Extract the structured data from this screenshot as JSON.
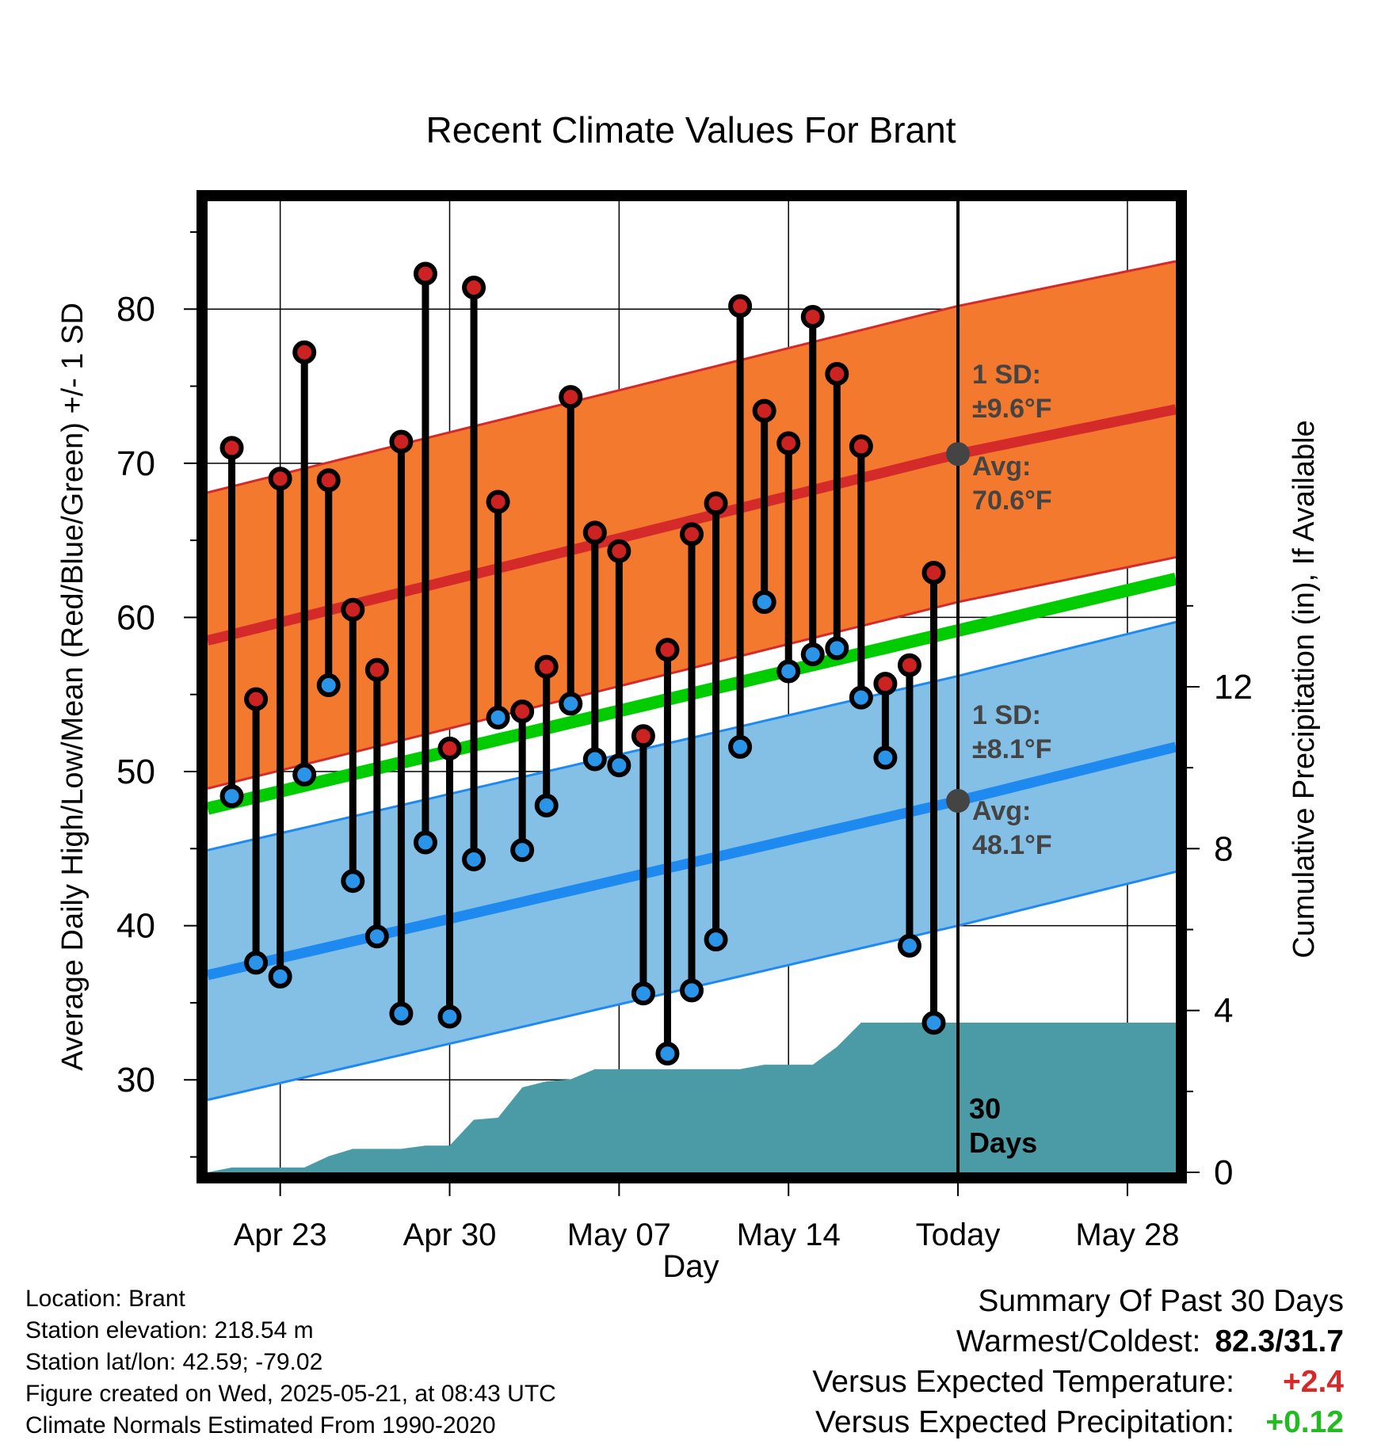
{
  "title": "Recent Climate Values For Brant",
  "chart_data": {
    "type": "line",
    "title": "Recent Climate Values For Brant",
    "xlabel": "Day",
    "ylabel_left": "Average Daily High/Low/Mean (Red/Blue/Green) +/- 1 SD",
    "ylabel_right": "Cumulative Precipitation (in), If Available",
    "x_ticks": [
      "Apr 23",
      "Apr 30",
      "May 07",
      "May 14",
      "Today",
      "May 28"
    ],
    "x_range": [
      "Apr 20",
      "May 30"
    ],
    "today": "May 21",
    "ylim_left": [
      24,
      87
    ],
    "yticks_left": [
      30,
      40,
      50,
      60,
      70,
      80
    ],
    "ylim_right": [
      0,
      24
    ],
    "yticks_right": [
      0,
      4,
      8,
      12
    ],
    "grid": true,
    "days": [
      "Apr 21",
      "Apr 22",
      "Apr 23",
      "Apr 24",
      "Apr 25",
      "Apr 26",
      "Apr 27",
      "Apr 28",
      "Apr 29",
      "Apr 30",
      "May 01",
      "May 02",
      "May 03",
      "May 04",
      "May 05",
      "May 06",
      "May 07",
      "May 08",
      "May 09",
      "May 10",
      "May 11",
      "May 12",
      "May 13",
      "May 14",
      "May 15",
      "May 16",
      "May 17",
      "May 18",
      "May 19",
      "May 20"
    ],
    "daily_high": [
      71.0,
      54.7,
      69.0,
      77.2,
      68.9,
      60.5,
      56.6,
      71.4,
      82.3,
      51.5,
      81.4,
      67.5,
      53.9,
      56.8,
      74.3,
      65.5,
      64.3,
      52.3,
      57.9,
      65.4,
      67.4,
      80.2,
      73.4,
      71.3,
      79.5,
      75.8,
      71.1,
      55.7,
      56.9,
      62.9
    ],
    "daily_low": [
      48.4,
      37.6,
      36.7,
      49.8,
      55.6,
      42.9,
      39.3,
      34.3,
      45.4,
      34.1,
      44.3,
      53.5,
      44.9,
      47.8,
      54.4,
      50.8,
      50.4,
      35.6,
      31.7,
      35.8,
      39.1,
      51.6,
      61.0,
      56.5,
      57.6,
      58.0,
      54.8,
      50.9,
      38.7,
      33.7
    ],
    "normal_high_avg": {
      "start": 58.5,
      "today": 70.6,
      "end": 73.5
    },
    "normal_high_sd": 9.6,
    "normal_low_avg": {
      "start": 36.8,
      "today": 48.1,
      "end": 51.6
    },
    "normal_low_sd": 8.1,
    "normal_mean": {
      "start": 47.6,
      "end": 62.5
    },
    "precip_cumulative": {
      "days": [
        "Apr 20",
        "Apr 21",
        "Apr 22",
        "Apr 23",
        "Apr 24",
        "Apr 25",
        "Apr 26",
        "Apr 27",
        "Apr 28",
        "Apr 29",
        "Apr 30",
        "May 01",
        "May 02",
        "May 03",
        "May 04",
        "May 05",
        "May 06",
        "May 07",
        "May 08",
        "May 09",
        "May 10",
        "May 11",
        "May 12",
        "May 13",
        "May 14",
        "May 15",
        "May 16",
        "May 17",
        "May 18",
        "May 30"
      ],
      "values": [
        0.0,
        0.12,
        0.12,
        0.12,
        0.12,
        0.4,
        0.58,
        0.58,
        0.58,
        0.66,
        0.66,
        1.3,
        1.35,
        2.1,
        2.25,
        2.3,
        2.55,
        2.55,
        2.55,
        2.55,
        2.55,
        2.55,
        2.55,
        2.66,
        2.66,
        2.66,
        3.1,
        3.7,
        3.7,
        3.7
      ]
    },
    "colors": {
      "high_band": "#f2792e",
      "high_avg": "#d42a2a",
      "low_band": "#84c0e6",
      "low_avg": "#1e8af0",
      "mean": "#00cc00",
      "precip": "#4a9ba6",
      "high_dot": "#cc2222",
      "low_dot": "#2a94e8"
    }
  },
  "annotations": {
    "high_sd_label": "1 SD:",
    "high_sd_value": "±9.6°F",
    "high_avg_label": "Avg:",
    "high_avg_value": "70.6°F",
    "low_sd_label": "1 SD:",
    "low_sd_value": "±8.1°F",
    "low_avg_label": "Avg:",
    "low_avg_value": "48.1°F",
    "window_number": "30",
    "window_unit": "Days"
  },
  "station": {
    "location": "Location: Brant",
    "elevation": "Station elevation: 218.54 m",
    "latlon": "Station lat/lon: 42.59; -79.02",
    "created": "Figure created on Wed, 2025-05-21, at 08:43 UTC",
    "normals": "Climate Normals Estimated From 1990-2020"
  },
  "summary": {
    "heading": "Summary Of Past 30 Days",
    "warm_cold_label": "Warmest/Coldest:",
    "warm_cold_value": "82.3/31.7",
    "temp_label": "Versus Expected Temperature:",
    "temp_value": "+2.4",
    "temp_color": "#d42a2a",
    "precip_label": "Versus Expected Precipitation:",
    "precip_value": "+0.12",
    "precip_color": "#22bb22"
  }
}
